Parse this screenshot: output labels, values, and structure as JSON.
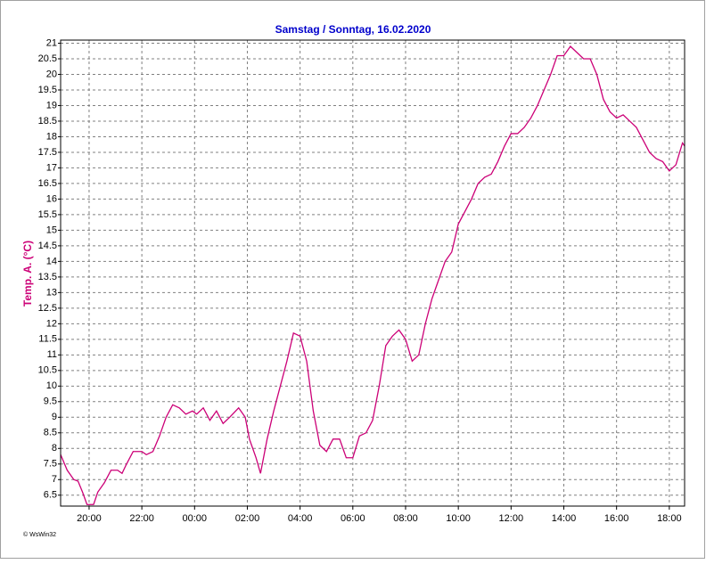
{
  "chart_data": {
    "type": "line",
    "title": "Samstag / Sonntag, 16.02.2020",
    "y_label": "Temp. A.  (°C)",
    "footer": "© WsWin32",
    "grid": true,
    "xlim": [
      18.92,
      42.58
    ],
    "ylim": [
      6.15,
      21.1
    ],
    "xticks": [
      {
        "value": 20,
        "label": "20:00"
      },
      {
        "value": 22,
        "label": "22:00"
      },
      {
        "value": 24,
        "label": "00:00"
      },
      {
        "value": 26,
        "label": "02:00"
      },
      {
        "value": 28,
        "label": "04:00"
      },
      {
        "value": 30,
        "label": "06:00"
      },
      {
        "value": 32,
        "label": "08:00"
      },
      {
        "value": 34,
        "label": "10:00"
      },
      {
        "value": 36,
        "label": "12:00"
      },
      {
        "value": 38,
        "label": "14:00"
      },
      {
        "value": 40,
        "label": "16:00"
      },
      {
        "value": 42,
        "label": "18:00"
      }
    ],
    "yticks": [
      6.5,
      7,
      7.5,
      8,
      8.5,
      9,
      9.5,
      10,
      10.5,
      11,
      11.5,
      12,
      12.5,
      13,
      13.5,
      14,
      14.5,
      15,
      15.5,
      16,
      16.5,
      17,
      17.5,
      18,
      18.5,
      19,
      19.5,
      20,
      20.5,
      21
    ],
    "x": [
      18.92,
      19.17,
      19.42,
      19.58,
      19.75,
      19.92,
      20.17,
      20.33,
      20.58,
      20.83,
      21.08,
      21.25,
      21.42,
      21.67,
      22,
      22.17,
      22.42,
      22.67,
      22.92,
      23.17,
      23.42,
      23.67,
      23.92,
      24.08,
      24.33,
      24.58,
      24.83,
      25.08,
      25.33,
      25.67,
      25.92,
      26.08,
      26.33,
      26.5,
      26.75,
      27,
      27.25,
      27.5,
      27.75,
      28,
      28.25,
      28.5,
      28.75,
      29,
      29.25,
      29.5,
      29.75,
      30,
      30.25,
      30.5,
      30.75,
      31,
      31.25,
      31.5,
      31.75,
      32,
      32.25,
      32.5,
      32.75,
      33,
      33.25,
      33.5,
      33.75,
      34,
      34.25,
      34.5,
      34.75,
      35,
      35.25,
      35.5,
      35.75,
      36,
      36.25,
      36.5,
      36.75,
      37,
      37.25,
      37.5,
      37.75,
      38,
      38.25,
      38.5,
      38.75,
      39,
      39.25,
      39.5,
      39.75,
      40,
      40.25,
      40.5,
      40.75,
      41,
      41.25,
      41.5,
      41.75,
      42,
      42.25,
      42.5,
      42.58
    ],
    "series": [
      {
        "name": "Temp. A.",
        "color": "#cc0077",
        "values": [
          7.8,
          7.3,
          7.0,
          6.95,
          6.6,
          6.2,
          6.2,
          6.6,
          6.9,
          7.3,
          7.3,
          7.2,
          7.5,
          7.9,
          7.9,
          7.8,
          7.9,
          8.4,
          9.0,
          9.4,
          9.3,
          9.1,
          9.2,
          9.1,
          9.3,
          8.9,
          9.2,
          8.8,
          9.0,
          9.3,
          9.0,
          8.3,
          7.7,
          7.2,
          8.3,
          9.2,
          10.0,
          10.8,
          11.7,
          11.6,
          10.8,
          9.2,
          8.1,
          7.9,
          8.3,
          8.3,
          7.7,
          7.7,
          8.4,
          8.5,
          8.9,
          10.0,
          11.3,
          11.6,
          11.8,
          11.5,
          10.8,
          11.0,
          12.0,
          12.8,
          13.4,
          14.0,
          14.3,
          15.2,
          15.6,
          16.0,
          16.5,
          16.7,
          16.8,
          17.2,
          17.7,
          18.1,
          18.1,
          18.3,
          18.6,
          19.0,
          19.5,
          20.0,
          20.6,
          20.6,
          20.9,
          20.7,
          20.5,
          20.5,
          20.0,
          19.2,
          18.8,
          18.6,
          18.7,
          18.5,
          18.3,
          17.9,
          17.5,
          17.3,
          17.2,
          16.9,
          17.1,
          17.8,
          17.7
        ]
      }
    ]
  }
}
